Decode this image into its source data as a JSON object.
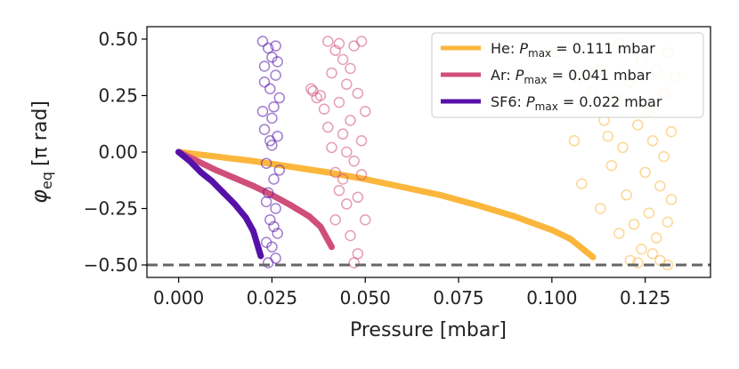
{
  "chart_data": {
    "type": "scatter",
    "title": "",
    "xlabel": "Pressure [mbar]",
    "ylabel_main": "φ",
    "ylabel_sub": "eq",
    "ylabel_unit": "[π rad]",
    "xlim": [
      -0.0085,
      0.1425
    ],
    "ylim": [
      -0.555,
      0.555
    ],
    "xticks": [
      0.0,
      0.025,
      0.05,
      0.075,
      0.1,
      0.125
    ],
    "xtick_labels": [
      "0.000",
      "0.025",
      "0.050",
      "0.075",
      "0.100",
      "0.125"
    ],
    "yticks": [
      0.5,
      0.25,
      0.0,
      -0.25,
      -0.5
    ],
    "ytick_labels": [
      "0.50",
      "0.25",
      "0.00",
      "−0.25",
      "−0.50"
    ],
    "reference_line": {
      "y": -0.5,
      "color": "#666666",
      "style": "dashed"
    },
    "legend_position": "top-right",
    "series": [
      {
        "name": "He",
        "legend_prefix": "He: ",
        "legend_p": "P",
        "legend_sub": "max",
        "legend_value": " = 0.111 mbar",
        "color": "#fbb63c",
        "p_max": 0.111,
        "curve": [
          [
            0.0,
            0.0
          ],
          [
            0.01,
            -0.02
          ],
          [
            0.02,
            -0.04
          ],
          [
            0.03,
            -0.065
          ],
          [
            0.04,
            -0.09
          ],
          [
            0.05,
            -0.12
          ],
          [
            0.06,
            -0.155
          ],
          [
            0.07,
            -0.19
          ],
          [
            0.08,
            -0.235
          ],
          [
            0.09,
            -0.285
          ],
          [
            0.1,
            -0.345
          ],
          [
            0.105,
            -0.385
          ],
          [
            0.111,
            -0.465
          ]
        ],
        "scatter": [
          [
            0.101,
            0.44
          ],
          [
            0.107,
            0.33
          ],
          [
            0.11,
            0.21
          ],
          [
            0.112,
            0.36
          ],
          [
            0.114,
            0.14
          ],
          [
            0.116,
            -0.06
          ],
          [
            0.117,
            0.24
          ],
          [
            0.118,
            0.48
          ],
          [
            0.119,
            0.02
          ],
          [
            0.12,
            -0.19
          ],
          [
            0.121,
            0.31
          ],
          [
            0.122,
            -0.32
          ],
          [
            0.123,
            0.12
          ],
          [
            0.124,
            -0.43
          ],
          [
            0.124,
            0.41
          ],
          [
            0.125,
            -0.09
          ],
          [
            0.126,
            0.18
          ],
          [
            0.126,
            -0.27
          ],
          [
            0.127,
            0.05
          ],
          [
            0.128,
            0.36
          ],
          [
            0.128,
            -0.38
          ],
          [
            0.129,
            -0.15
          ],
          [
            0.13,
            0.26
          ],
          [
            0.13,
            -0.02
          ],
          [
            0.131,
            0.44
          ],
          [
            0.131,
            -0.31
          ],
          [
            0.132,
            0.09
          ],
          [
            0.132,
            -0.21
          ],
          [
            0.133,
            0.33
          ],
          [
            0.113,
            -0.25
          ],
          [
            0.115,
            0.07
          ],
          [
            0.118,
            -0.36
          ],
          [
            0.121,
            -0.48
          ],
          [
            0.123,
            -0.49
          ],
          [
            0.127,
            -0.45
          ],
          [
            0.129,
            -0.48
          ],
          [
            0.131,
            -0.5
          ],
          [
            0.108,
            -0.14
          ],
          [
            0.111,
            0.27
          ],
          [
            0.106,
            0.05
          ]
        ]
      },
      {
        "name": "Ar",
        "legend_prefix": "Ar: ",
        "legend_p": "P",
        "legend_sub": "max",
        "legend_value": " = 0.041 mbar",
        "color": "#d04f7a",
        "p_max": 0.041,
        "curve": [
          [
            0.0,
            0.0
          ],
          [
            0.005,
            -0.04
          ],
          [
            0.01,
            -0.08
          ],
          [
            0.015,
            -0.115
          ],
          [
            0.02,
            -0.15
          ],
          [
            0.025,
            -0.19
          ],
          [
            0.03,
            -0.235
          ],
          [
            0.035,
            -0.285
          ],
          [
            0.038,
            -0.33
          ],
          [
            0.041,
            -0.42
          ]
        ],
        "scatter": [
          [
            0.0355,
            0.28
          ],
          [
            0.036,
            0.27
          ],
          [
            0.037,
            0.24
          ],
          [
            0.038,
            0.25
          ],
          [
            0.039,
            0.19
          ],
          [
            0.04,
            0.49
          ],
          [
            0.04,
            0.11
          ],
          [
            0.041,
            0.35
          ],
          [
            0.041,
            0.02
          ],
          [
            0.042,
            0.45
          ],
          [
            0.042,
            -0.09
          ],
          [
            0.043,
            0.22
          ],
          [
            0.043,
            -0.17
          ],
          [
            0.044,
            0.41
          ],
          [
            0.044,
            0.08
          ],
          [
            0.045,
            -0.23
          ],
          [
            0.045,
            0.3
          ],
          [
            0.046,
            0.14
          ],
          [
            0.046,
            -0.37
          ],
          [
            0.047,
            0.47
          ],
          [
            0.047,
            -0.04
          ],
          [
            0.048,
            0.26
          ],
          [
            0.048,
            -0.45
          ],
          [
            0.049,
            0.05
          ],
          [
            0.049,
            0.49
          ],
          [
            0.05,
            -0.3
          ],
          [
            0.05,
            0.18
          ],
          [
            0.044,
            -0.12
          ],
          [
            0.046,
            0.37
          ],
          [
            0.048,
            -0.2
          ],
          [
            0.043,
            0.48
          ],
          [
            0.047,
            -0.49
          ],
          [
            0.045,
            0.0
          ],
          [
            0.049,
            -0.1
          ],
          [
            0.042,
            -0.3
          ]
        ]
      },
      {
        "name": "SF6",
        "legend_prefix": "SF6: ",
        "legend_p": "P",
        "legend_sub": "max",
        "legend_value": " = 0.022 mbar",
        "color": "#5612a8",
        "p_max": 0.022,
        "curve": [
          [
            0.0,
            0.0
          ],
          [
            0.003,
            -0.04
          ],
          [
            0.006,
            -0.09
          ],
          [
            0.009,
            -0.13
          ],
          [
            0.012,
            -0.18
          ],
          [
            0.015,
            -0.23
          ],
          [
            0.018,
            -0.29
          ],
          [
            0.02,
            -0.35
          ],
          [
            0.022,
            -0.46
          ]
        ],
        "scatter": [
          [
            0.0225,
            0.49
          ],
          [
            0.023,
            0.38
          ],
          [
            0.023,
            0.1
          ],
          [
            0.0235,
            -0.05
          ],
          [
            0.024,
            0.46
          ],
          [
            0.024,
            -0.18
          ],
          [
            0.0245,
            0.28
          ],
          [
            0.0245,
            -0.3
          ],
          [
            0.025,
            0.42
          ],
          [
            0.025,
            0.03
          ],
          [
            0.025,
            -0.42
          ],
          [
            0.0255,
            0.2
          ],
          [
            0.0255,
            -0.12
          ],
          [
            0.026,
            0.34
          ],
          [
            0.026,
            -0.25
          ],
          [
            0.026,
            0.47
          ],
          [
            0.0265,
            0.07
          ],
          [
            0.0265,
            -0.36
          ],
          [
            0.027,
            0.24
          ],
          [
            0.027,
            -0.08
          ],
          [
            0.023,
            0.31
          ],
          [
            0.024,
            -0.49
          ],
          [
            0.025,
            0.15
          ],
          [
            0.026,
            -0.47
          ],
          [
            0.0235,
            -0.22
          ],
          [
            0.0245,
            0.05
          ],
          [
            0.0255,
            -0.33
          ],
          [
            0.0225,
            0.18
          ],
          [
            0.0265,
            0.4
          ],
          [
            0.0235,
            -0.4
          ]
        ]
      }
    ]
  }
}
